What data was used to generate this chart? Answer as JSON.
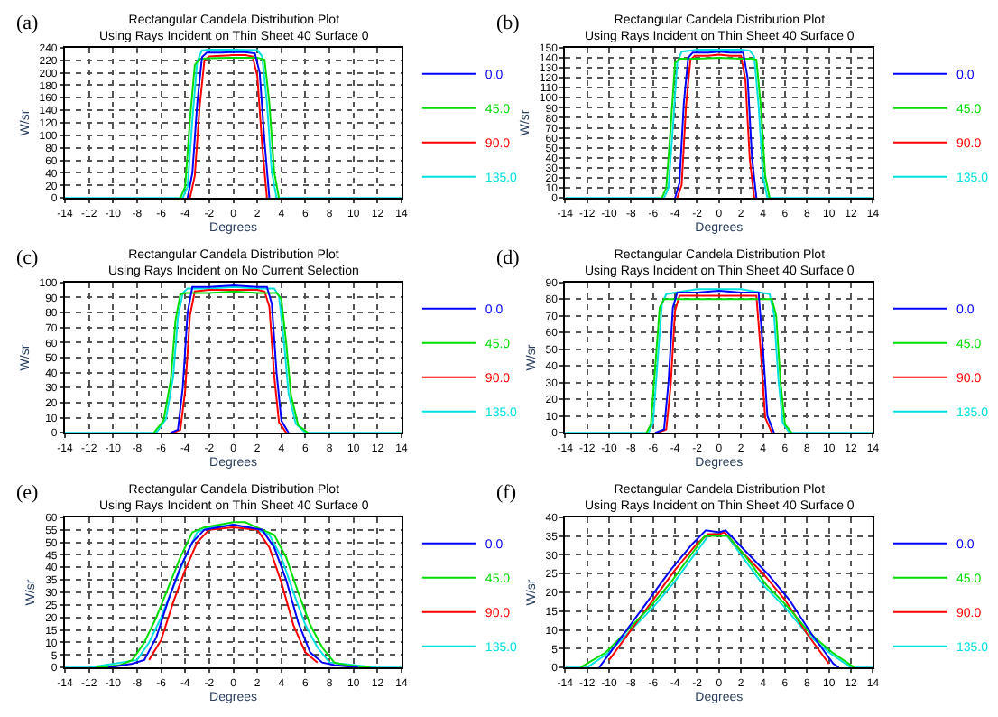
{
  "chart_data": [
    {
      "type": "line",
      "title": "Rectangular Candela Distribution Plot",
      "subtitle": "Using Rays Incident on Thin Sheet 40 Surface 0",
      "xlabel": "Degrees",
      "ylabel": "W/sr",
      "annotations": [
        "(a)"
      ],
      "xlim": [
        -14,
        14
      ],
      "xticks": [
        -14,
        -12,
        -10,
        -8,
        -6,
        -4,
        -2,
        0,
        2,
        4,
        6,
        8,
        10,
        12,
        14
      ],
      "ylim": [
        0,
        240
      ],
      "yticks": [
        0,
        20,
        40,
        60,
        80,
        100,
        120,
        140,
        160,
        180,
        200,
        220,
        240
      ],
      "grid": true,
      "legend": "right",
      "series": [
        {
          "name": "0.0",
          "color": "#0000ff",
          "x": [
            -3.8,
            -3.4,
            -3,
            -2.6,
            -2.2,
            -1,
            0,
            1,
            1.8,
            2.2,
            2.6,
            3
          ],
          "values": [
            0,
            40,
            150,
            225,
            232,
            232,
            233,
            233,
            231,
            200,
            90,
            0
          ]
        },
        {
          "name": "45.0",
          "color": "#00dd00",
          "x": [
            -4.4,
            -4,
            -3.6,
            -3.2,
            -2.8,
            -2,
            0,
            2,
            2.6,
            3,
            3.4,
            3.8
          ],
          "values": [
            0,
            18,
            125,
            212,
            222,
            223,
            224,
            224,
            221,
            152,
            42,
            0
          ]
        },
        {
          "name": "90.0",
          "color": "#ff0000",
          "x": [
            -3.6,
            -3.2,
            -2.8,
            -2.4,
            -2,
            -1,
            0,
            1,
            1.6,
            2,
            2.4,
            2.8
          ],
          "values": [
            0,
            35,
            145,
            220,
            226,
            227,
            228,
            228,
            226,
            195,
            85,
            0
          ]
        },
        {
          "name": "135.0",
          "color": "#00e0e0",
          "x": [
            -14,
            -4.2,
            -3.8,
            -3.4,
            -3,
            -2.6,
            -2,
            0,
            2,
            2.4,
            2.8,
            3.2,
            3.6,
            14
          ],
          "values": [
            0,
            0,
            18,
            125,
            218,
            236,
            237,
            237,
            236,
            226,
            152,
            42,
            0,
            0
          ]
        }
      ]
    },
    {
      "type": "line",
      "title": "Rectangular Candela Distribution Plot",
      "subtitle": "Using Rays Incident on Thin Sheet 40 Surface 0",
      "xlabel": "Degrees",
      "ylabel": "W/sr",
      "annotations": [
        "(b)"
      ],
      "xlim": [
        -14,
        14
      ],
      "xticks": [
        -14,
        -12,
        -10,
        -8,
        -6,
        -4,
        -2,
        0,
        2,
        4,
        6,
        8,
        10,
        12,
        14
      ],
      "ylim": [
        0,
        150
      ],
      "yticks": [
        0,
        10,
        20,
        30,
        40,
        50,
        60,
        70,
        80,
        90,
        100,
        110,
        120,
        130,
        140,
        150
      ],
      "grid": true,
      "legend": "right",
      "series": [
        {
          "name": "0.0",
          "color": "#0000ff",
          "x": [
            -4,
            -3.6,
            -3.2,
            -2.8,
            -2.4,
            -1,
            0,
            1,
            2.2,
            2.6,
            3,
            3.4
          ],
          "values": [
            0,
            15,
            95,
            140,
            145,
            145,
            146,
            145,
            145,
            120,
            40,
            0
          ]
        },
        {
          "name": "45.0",
          "color": "#00dd00",
          "x": [
            -5.2,
            -4.8,
            -4.4,
            -4,
            -3.6,
            -2,
            0,
            2,
            3,
            3.4,
            3.8,
            4.2,
            4.6
          ],
          "values": [
            0,
            10,
            70,
            135,
            139,
            139,
            140,
            139,
            139,
            138,
            92,
            22,
            0
          ]
        },
        {
          "name": "90.0",
          "color": "#ff0000",
          "x": [
            -3.8,
            -3.4,
            -3,
            -2.6,
            -2.2,
            -1,
            0,
            1,
            2,
            2.4,
            2.8,
            3.2
          ],
          "values": [
            0,
            13,
            92,
            138,
            142,
            142,
            143,
            142,
            142,
            118,
            38,
            0
          ]
        },
        {
          "name": "135.0",
          "color": "#00e0e0",
          "x": [
            -14,
            -5,
            -4.6,
            -4.2,
            -3.8,
            -3.4,
            -2,
            0,
            2,
            2.8,
            3.2,
            3.6,
            4,
            4.4,
            14
          ],
          "values": [
            0,
            0,
            10,
            70,
            135,
            146,
            148,
            148,
            148,
            147,
            141,
            92,
            22,
            0,
            0
          ]
        }
      ]
    },
    {
      "type": "line",
      "title": "Rectangular Candela Distribution Plot",
      "subtitle": "Using Rays Incident on No Current Selection",
      "xlabel": "Degrees",
      "ylabel": "W/sr",
      "annotations": [
        "(c)"
      ],
      "xlim": [
        -14,
        14
      ],
      "xticks": [
        -14,
        -12,
        -10,
        -8,
        -6,
        -4,
        -2,
        0,
        2,
        4,
        6,
        8,
        10,
        12,
        14
      ],
      "ylim": [
        0,
        100
      ],
      "yticks": [
        0,
        10,
        20,
        30,
        40,
        50,
        60,
        70,
        80,
        90,
        100
      ],
      "grid": true,
      "legend": "right",
      "series": [
        {
          "name": "0.0",
          "color": "#0000ff",
          "x": [
            -5.2,
            -4.6,
            -4.2,
            -3.8,
            -3.4,
            -2,
            0,
            2,
            2.8,
            3.2,
            3.6,
            4,
            4.6
          ],
          "values": [
            0,
            2,
            30,
            80,
            97,
            97,
            98,
            97,
            97,
            86,
            40,
            8,
            0
          ]
        },
        {
          "name": "45.0",
          "color": "#00dd00",
          "x": [
            -6.6,
            -5.8,
            -5.2,
            -4.8,
            -4.4,
            -4,
            -2,
            0,
            2,
            3.6,
            4,
            4.4,
            4.8,
            5.4,
            6.2
          ],
          "values": [
            0,
            8,
            35,
            75,
            92,
            93,
            93,
            94,
            93,
            93,
            89,
            60,
            25,
            5,
            0
          ]
        },
        {
          "name": "90.0",
          "color": "#ff0000",
          "x": [
            -5,
            -4.4,
            -4,
            -3.6,
            -3.2,
            -2,
            0,
            2,
            2.6,
            3,
            3.4,
            3.8,
            4.4
          ],
          "values": [
            0,
            2,
            28,
            78,
            94,
            95,
            95,
            95,
            94,
            84,
            38,
            7,
            0
          ]
        },
        {
          "name": "135.0",
          "color": "#00e0e0",
          "x": [
            -14,
            -6.4,
            -5.6,
            -5,
            -4.6,
            -4.2,
            -3.8,
            -2,
            0,
            2,
            3.4,
            3.8,
            4.2,
            4.6,
            5.2,
            6,
            14
          ],
          "values": [
            0,
            0,
            9,
            37,
            77,
            93,
            96,
            96,
            97,
            96,
            96,
            91,
            62,
            26,
            6,
            0,
            0
          ]
        }
      ]
    },
    {
      "type": "line",
      "title": "Rectangular Candela Distribution Plot",
      "subtitle": "Using Rays Incident on Thin Sheet 40 Surface 0",
      "xlabel": "Degrees",
      "ylabel": "W/sr",
      "annotations": [
        "(d)"
      ],
      "xlim": [
        -14,
        14
      ],
      "xticks": [
        -14,
        -12,
        -10,
        -8,
        -6,
        -4,
        -2,
        0,
        2,
        4,
        6,
        8,
        10,
        12,
        14
      ],
      "ylim": [
        0,
        90
      ],
      "yticks": [
        0,
        10,
        20,
        30,
        40,
        50,
        60,
        70,
        80,
        90
      ],
      "grid": true,
      "legend": "right",
      "series": [
        {
          "name": "0.0",
          "color": "#0000ff",
          "x": [
            -5.8,
            -5,
            -4.6,
            -4.2,
            -3.8,
            -2,
            0,
            2,
            3.6,
            4,
            4.4,
            5
          ],
          "values": [
            0,
            2,
            30,
            75,
            84,
            84,
            85,
            84,
            84,
            50,
            10,
            0
          ]
        },
        {
          "name": "45.0",
          "color": "#00dd00",
          "x": [
            -6.6,
            -6.2,
            -5.8,
            -5.4,
            -5,
            -2,
            0,
            2,
            4.8,
            5.2,
            5.6,
            6,
            6.6
          ],
          "values": [
            0,
            5,
            40,
            75,
            80,
            80,
            80,
            80,
            80,
            70,
            30,
            5,
            0
          ]
        },
        {
          "name": "90.0",
          "color": "#ff0000",
          "x": [
            -5.6,
            -4.8,
            -4.4,
            -4,
            -3.6,
            -2,
            0,
            2,
            3.4,
            3.8,
            4.2,
            4.8
          ],
          "values": [
            0,
            2,
            28,
            73,
            82,
            82,
            82,
            82,
            82,
            48,
            9,
            0
          ]
        },
        {
          "name": "135.0",
          "color": "#00e0e0",
          "x": [
            -14,
            -6.4,
            -6,
            -5.6,
            -5.2,
            -4.8,
            -2,
            0,
            2,
            4.6,
            5,
            5.4,
            5.8,
            6.4,
            14
          ],
          "values": [
            0,
            0,
            6,
            42,
            77,
            83,
            86,
            86,
            86,
            83,
            71,
            32,
            6,
            0,
            0
          ]
        }
      ]
    },
    {
      "type": "line",
      "title": "Rectangular Candela Distribution Plot",
      "subtitle": "Using Rays Incident on Thin Sheet 40 Surface 0",
      "xlabel": "Degrees",
      "ylabel": "W/sr",
      "annotations": [
        "(e)"
      ],
      "xlim": [
        -14,
        14
      ],
      "xticks": [
        -14,
        -12,
        -10,
        -8,
        -6,
        -4,
        -2,
        0,
        2,
        4,
        6,
        8,
        10,
        12,
        14
      ],
      "ylim": [
        0,
        60
      ],
      "yticks": [
        0,
        5,
        10,
        15,
        20,
        25,
        30,
        35,
        40,
        45,
        50,
        55,
        60
      ],
      "grid": true,
      "legend": "right",
      "series": [
        {
          "name": "0.0",
          "color": "#0000ff",
          "x": [
            -10.4,
            -8.4,
            -7.4,
            -6.4,
            -5.4,
            -4.4,
            -3.4,
            -2.4,
            0,
            2.4,
            3.4,
            4.4,
            5.4,
            6.4,
            7.4,
            8.4,
            10.4
          ],
          "values": [
            0,
            1.5,
            3,
            12,
            27,
            40,
            50,
            55,
            57,
            55,
            48,
            35,
            18,
            6,
            2,
            1,
            0
          ]
        },
        {
          "name": "45.0",
          "color": "#00dd00",
          "x": [
            -11.4,
            -9.4,
            -8.4,
            -7.4,
            -6.4,
            -5.4,
            -4.4,
            -3.4,
            -2.4,
            0,
            1,
            2.4,
            3.4,
            4.4,
            5.4,
            6.4,
            7.4,
            8.4,
            9.4,
            11.4
          ],
          "values": [
            0,
            1,
            3,
            10,
            20,
            32,
            44,
            54,
            56,
            58,
            58,
            55,
            53,
            44,
            30,
            17,
            8,
            2,
            1,
            0
          ]
        },
        {
          "name": "90.0",
          "color": "#ff0000",
          "x": [
            -7,
            -6,
            -5,
            -4,
            -3,
            -2,
            0,
            2,
            3,
            4,
            5,
            6,
            7
          ],
          "values": [
            3,
            11,
            26,
            39,
            50,
            55,
            56,
            55,
            48,
            34,
            17,
            6,
            2
          ]
        },
        {
          "name": "135.0",
          "color": "#00e0e0",
          "x": [
            -14,
            -12,
            -8,
            -7,
            -6,
            -5,
            -4,
            -3,
            -2,
            0,
            1,
            2,
            3,
            4,
            5,
            6,
            7,
            8,
            12,
            14
          ],
          "values": [
            0,
            0,
            3,
            10,
            20,
            32,
            44,
            54,
            56,
            57,
            56,
            55,
            53,
            44,
            30,
            17,
            8,
            2,
            0,
            0
          ]
        }
      ]
    },
    {
      "type": "line",
      "title": "Rectangular Candela Distribution Plot",
      "subtitle": "Using Rays Incident on Thin Sheet 40 Surface 0",
      "xlabel": "Degrees",
      "ylabel": "W/sr",
      "annotations": [
        "(f)"
      ],
      "xlim": [
        -14,
        14
      ],
      "xticks": [
        -14,
        -12,
        -10,
        -8,
        -6,
        -4,
        -2,
        0,
        2,
        4,
        6,
        8,
        10,
        12,
        14
      ],
      "ylim": [
        0,
        40
      ],
      "yticks": [
        0,
        5,
        10,
        15,
        20,
        25,
        30,
        35,
        40
      ],
      "grid": true,
      "legend": "right",
      "series": [
        {
          "name": "0.0",
          "color": "#0000ff",
          "x": [
            -10.9,
            -10.4,
            -8.4,
            -6.4,
            -4.4,
            -2.4,
            -1.2,
            0,
            0.6,
            2.4,
            4.4,
            6.4,
            8.4,
            10.4,
            10.9
          ],
          "values": [
            0,
            2,
            10,
            18,
            26,
            33,
            36.5,
            36,
            36.5,
            31,
            25,
            18,
            9,
            1,
            0
          ]
        },
        {
          "name": "45.0",
          "color": "#00dd00",
          "x": [
            -12.6,
            -10.3,
            -8.3,
            -6.3,
            -4.3,
            -2.3,
            -1.3,
            0,
            0.8,
            2.3,
            4.3,
            6.3,
            8.3,
            10.3,
            12.3
          ],
          "values": [
            0,
            4,
            10,
            16,
            23,
            31,
            35,
            35,
            35,
            30,
            22,
            16,
            9,
            4,
            0
          ]
        },
        {
          "name": "90.0",
          "color": "#ff0000",
          "x": [
            -10,
            -8,
            -6,
            -4,
            -2,
            -1,
            0,
            0.5,
            2,
            4,
            6,
            8,
            10
          ],
          "values": [
            2,
            10,
            18,
            26,
            33,
            35.5,
            35.5,
            36,
            31,
            25,
            18,
            9,
            1
          ]
        },
        {
          "name": "135.0",
          "color": "#00e0e0",
          "x": [
            -14,
            -12,
            -10,
            -8,
            -6,
            -4,
            -2,
            -1,
            0,
            0.5,
            2,
            4,
            6,
            8,
            10,
            12,
            14
          ],
          "values": [
            0,
            0,
            4,
            10,
            16,
            23,
            31,
            35,
            36,
            36,
            30,
            22,
            16,
            9,
            4,
            0,
            0
          ]
        }
      ]
    }
  ]
}
